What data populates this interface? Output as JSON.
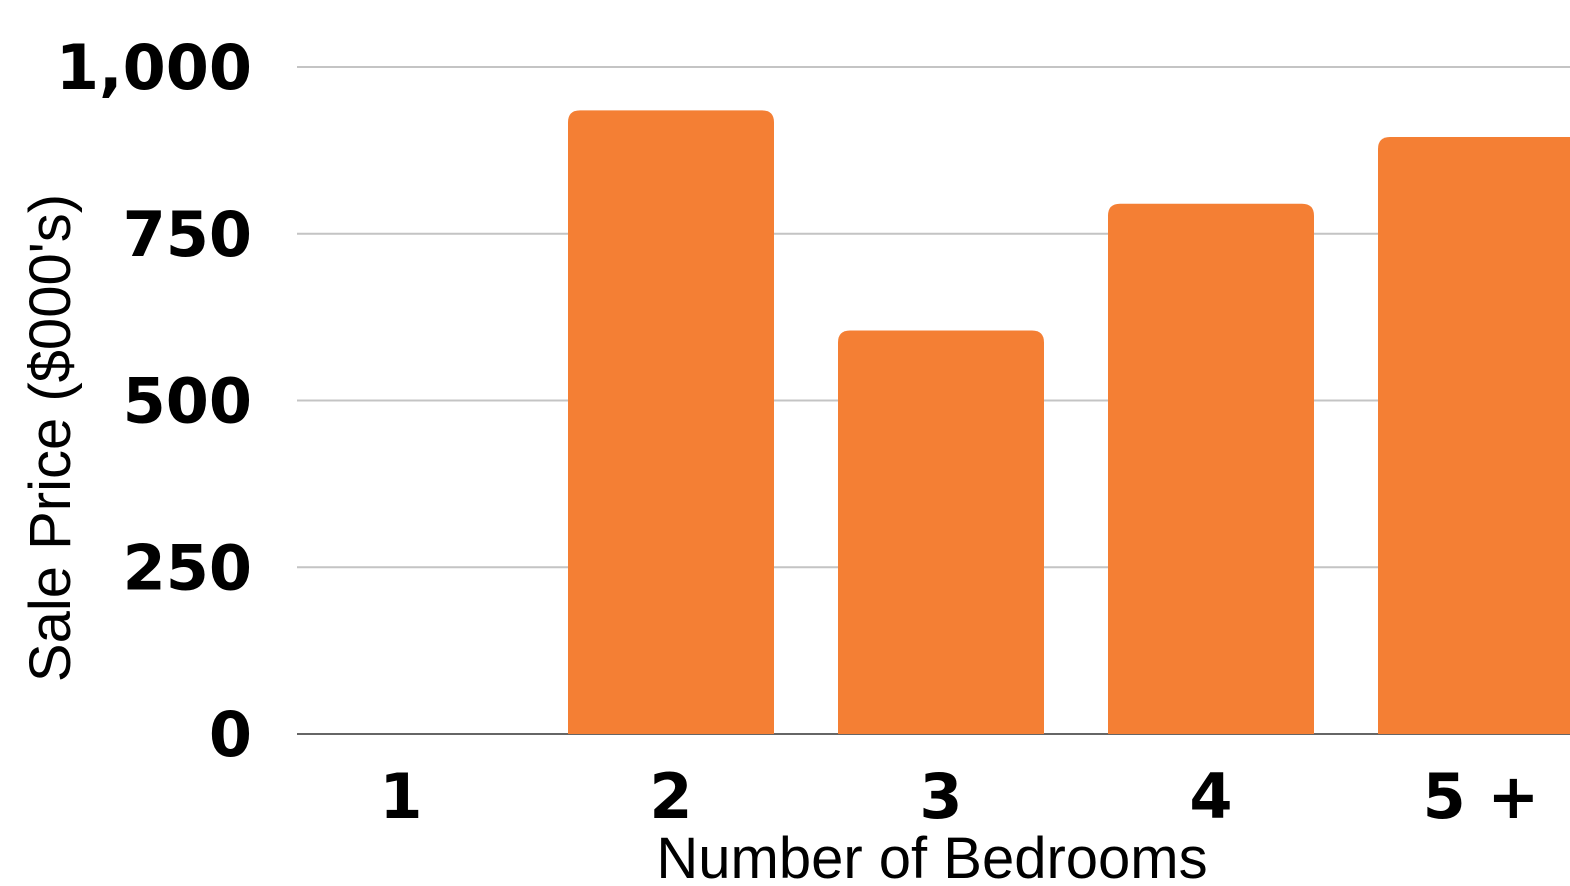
{
  "chart_data": {
    "type": "bar",
    "categories": [
      "1",
      "2",
      "3",
      "4",
      "5 +"
    ],
    "values": [
      0,
      935,
      605,
      795,
      895
    ],
    "title": "",
    "xlabel": "Number of Bedrooms",
    "ylabel": "Sale Price ($000's)",
    "ylim": [
      0,
      1000
    ],
    "yticks": [
      0,
      250,
      500,
      750,
      1000
    ],
    "ytick_labels": [
      "0",
      "250",
      "500",
      "750",
      "1,000"
    ],
    "grid": true,
    "legend": "none",
    "bar_color": "#f47f34"
  }
}
